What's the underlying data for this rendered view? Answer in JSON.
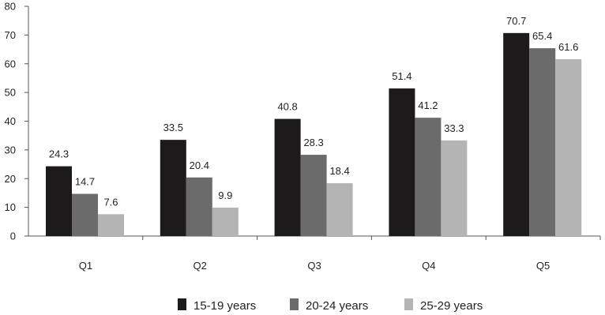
{
  "chart_data": {
    "type": "bar",
    "categories": [
      "Q1",
      "Q2",
      "Q3",
      "Q4",
      "Q5"
    ],
    "series": [
      {
        "name": "15-19 years",
        "values": [
          24.3,
          33.5,
          40.8,
          51.4,
          70.7
        ],
        "color": "#1c1a1b"
      },
      {
        "name": "20-24 years",
        "values": [
          14.7,
          20.4,
          28.3,
          41.2,
          65.4
        ],
        "color": "#6b6b6b"
      },
      {
        "name": "25-29 years",
        "values": [
          7.6,
          9.9,
          18.4,
          33.3,
          61.6
        ],
        "color": "#b4b4b4"
      }
    ],
    "data_labels": [
      [
        "24.3",
        "33.5",
        "40.8",
        "51.4",
        "70.7"
      ],
      [
        "14.7",
        "20.4",
        "28.3",
        "41.2",
        "65.4"
      ],
      [
        "7.6",
        "9.9",
        "18.4",
        "33.3",
        "61.6"
      ]
    ],
    "ylim": [
      0,
      80
    ],
    "yticks": [
      0,
      10,
      20,
      30,
      40,
      50,
      60,
      70,
      80
    ],
    "ytick_labels": [
      "0",
      "10",
      "20",
      "30",
      "40",
      "50",
      "60",
      "70",
      "80"
    ],
    "title": "",
    "xlabel": "",
    "ylabel": "",
    "grid": false,
    "legend_position": "bottom-center"
  }
}
